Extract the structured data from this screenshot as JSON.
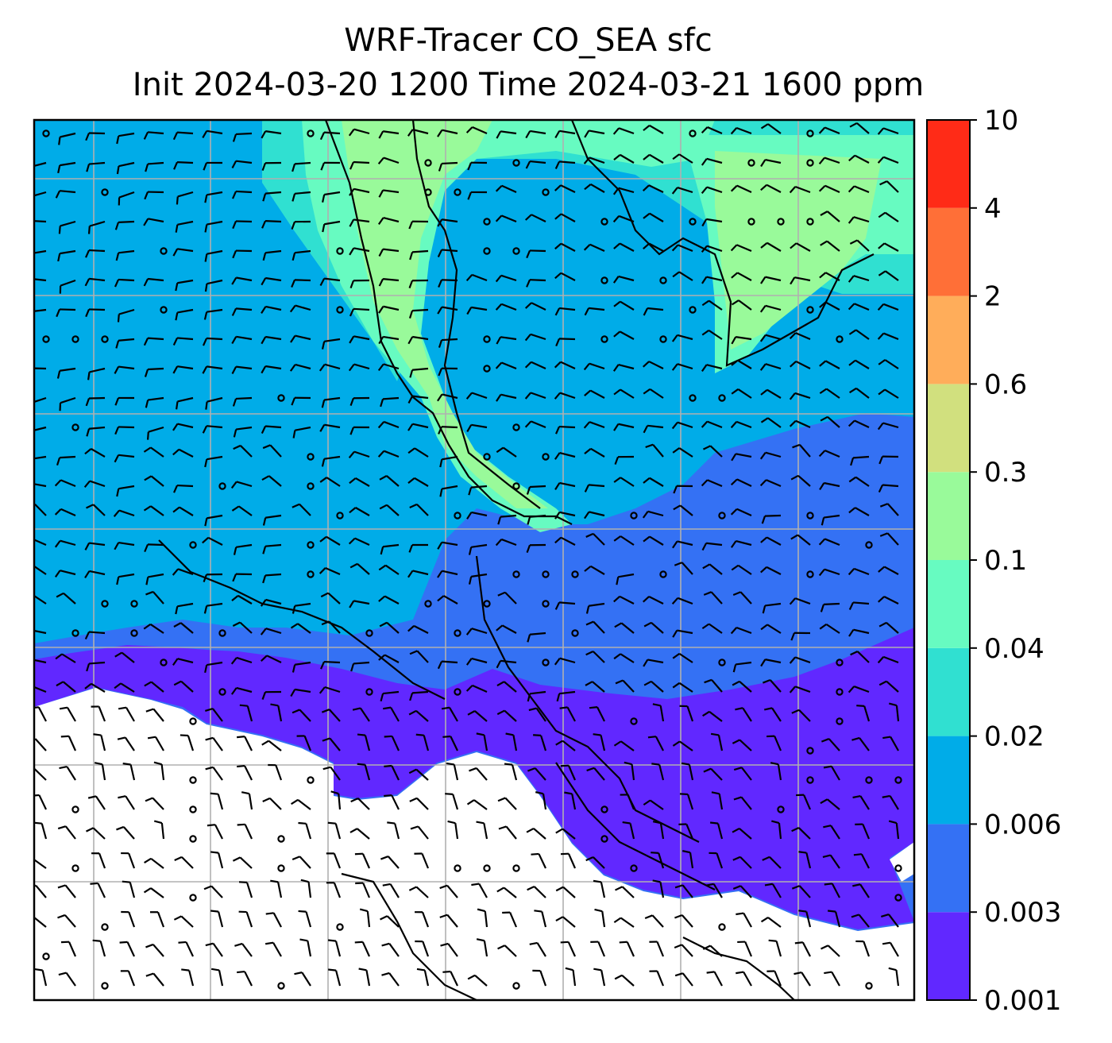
{
  "title": "WRF-Tracer CO_SEA sfc",
  "subtitle": "Init 2024-03-20 1200 Time 2024-03-21 1600 ppm",
  "chart_data": {
    "type": "heatmap",
    "title": "WRF-Tracer CO_SEA sfc",
    "subtitle": "Init 2024-03-20 1200 Time 2024-03-21 1600 ppm",
    "variable": "CO_SEA",
    "level": "sfc",
    "units": "ppm",
    "init": "2024-03-20 1200",
    "valid": "2024-03-21 1600",
    "grid": true,
    "overlays": [
      "coastlines",
      "country borders",
      "wind barbs"
    ],
    "colorbar": {
      "location": "right",
      "levels": [
        0.001,
        0.003,
        0.006,
        0.02,
        0.04,
        0.1,
        0.3,
        0.6,
        2,
        4,
        10
      ],
      "tick_labels": [
        "0.001",
        "0.003",
        "0.006",
        "0.02",
        "0.04",
        "0.1",
        "0.3",
        "0.6",
        "2",
        "4",
        "10"
      ],
      "colors": [
        "#6128ff",
        "#3471f4",
        "#00ace8",
        "#30e0d1",
        "#67fbc1",
        "#99fa9a",
        "#d1e07e",
        "#ffad5a",
        "#ff6f37",
        "#ff2b17"
      ]
    }
  }
}
